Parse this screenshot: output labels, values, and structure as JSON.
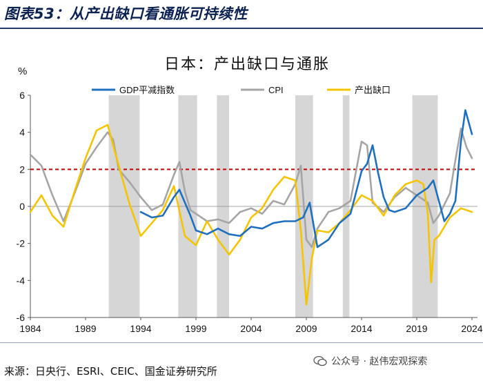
{
  "figure_title": "图表53：从产出缺口看通胀可持续性",
  "source": "来源：日央行、ESRI、CEIC、国金证券研究所",
  "watermark": "公众号 · 赵伟宏观探索",
  "colors": {
    "gdp_deflator": "#1f6fbf",
    "cpi": "#a5a5a5",
    "output_gap": "#f5c400",
    "recession": "#d6d6d6",
    "reference_line": "#c00000",
    "title": "#0b2150"
  },
  "chart_data": {
    "type": "line",
    "title": "日本：产出缺口与通胀",
    "ylabel": "%",
    "xlim": [
      1984,
      2024.5
    ],
    "ylim": [
      -6,
      6
    ],
    "x_ticks": [
      1984,
      1989,
      1994,
      1999,
      2004,
      2009,
      2014,
      2019,
      2024
    ],
    "y_ticks": [
      -6,
      -4,
      -2,
      0,
      2,
      4,
      6
    ],
    "legend_position": "top",
    "reference_line": {
      "y": 2,
      "style": "dashed"
    },
    "recession_bands": [
      [
        1991.1,
        1993.9
      ],
      [
        1997.4,
        1999.1
      ],
      [
        2000.9,
        2002.0
      ],
      [
        2008.0,
        2009.6
      ],
      [
        2012.3,
        2012.9
      ],
      [
        2018.6,
        2020.9
      ]
    ],
    "series": [
      {
        "name": "GDP平减指数",
        "x": [
          1994,
          1995,
          1996,
          1997,
          1997.5,
          1998,
          1998.5,
          1999,
          2000,
          2001,
          2002,
          2003,
          2004,
          2005,
          2006,
          2007,
          2008,
          2008.7,
          2009.3,
          2010,
          2011,
          2012,
          2013,
          2014,
          2014.5,
          2015,
          2015.5,
          2016,
          2016.5,
          2017,
          2018,
          2019,
          2020,
          2020.5,
          2021,
          2021.5,
          2022,
          2022.5,
          2023,
          2023.4,
          2024
        ],
        "values": [
          -0.3,
          -0.6,
          -0.5,
          0.5,
          0.9,
          0.2,
          -0.5,
          -1.3,
          -1.5,
          -1.2,
          -1.5,
          -1.6,
          -1.1,
          -1.2,
          -0.9,
          -0.8,
          -0.8,
          -0.6,
          0.2,
          -2.2,
          -1.8,
          -0.9,
          -0.4,
          1.9,
          2.3,
          3.3,
          1.8,
          0.5,
          -0.2,
          -0.3,
          -0.1,
          0.6,
          1.0,
          1.4,
          0.3,
          -0.8,
          -0.4,
          0.3,
          3.5,
          5.2,
          3.9
        ]
      },
      {
        "name": "CPI",
        "x": [
          1984,
          1985,
          1986,
          1987,
          1988,
          1989,
          1990,
          1991,
          1991.5,
          1992,
          1993,
          1994,
          1995,
          1996,
          1997,
          1997.5,
          1998,
          1998.5,
          1999,
          2000,
          2001,
          2002,
          2003,
          2004,
          2005,
          2006,
          2007,
          2008,
          2008.5,
          2009,
          2009.5,
          2010,
          2011,
          2012,
          2013,
          2014,
          2014.5,
          2015,
          2016,
          2017,
          2018,
          2019,
          2020,
          2020.5,
          2021,
          2022,
          2022.5,
          2023,
          2023.5,
          2024
        ],
        "values": [
          2.8,
          2.2,
          0.6,
          -0.8,
          0.7,
          2.3,
          3.2,
          4.0,
          3.6,
          2.0,
          1.3,
          0.5,
          -0.2,
          0.1,
          1.7,
          2.4,
          0.8,
          -0.2,
          -0.4,
          -0.8,
          -0.7,
          -0.9,
          -0.3,
          -0.1,
          -0.4,
          0.3,
          0.1,
          1.2,
          2.2,
          -1.8,
          -2.2,
          -1.2,
          -0.3,
          -0.1,
          0.3,
          3.5,
          3.3,
          0.2,
          -0.3,
          0.5,
          1.0,
          0.6,
          0.2,
          -0.9,
          -0.5,
          0.7,
          2.5,
          4.2,
          3.2,
          2.6
        ]
      },
      {
        "name": "产出缺口",
        "x": [
          1984,
          1985,
          1986,
          1987,
          1988,
          1989,
          1990,
          1991,
          1992,
          1993,
          1994,
          1995,
          1996,
          1997,
          1998,
          1999,
          2000,
          2001,
          2002,
          2003,
          2004,
          2005,
          2006,
          2007,
          2008,
          2008.5,
          2009,
          2009.5,
          2010,
          2011,
          2012,
          2013,
          2014,
          2015,
          2016,
          2017,
          2018,
          2019,
          2019.6,
          2020,
          2020.3,
          2020.6,
          2021,
          2022,
          2023,
          2024
        ],
        "values": [
          -0.3,
          0.6,
          -0.5,
          -1.1,
          0.8,
          2.6,
          4.1,
          4.4,
          2.2,
          0.1,
          -1.6,
          -0.9,
          -0.2,
          1.1,
          -1.6,
          -2.1,
          -0.8,
          -1.8,
          -2.6,
          -1.8,
          -0.6,
          -0.1,
          0.9,
          1.6,
          1.4,
          -1.3,
          -5.3,
          -2.8,
          -1.3,
          -1.4,
          -0.9,
          -0.2,
          0.6,
          0.3,
          -0.5,
          0.6,
          1.2,
          1.4,
          1.2,
          -0.4,
          -4.1,
          -1.8,
          -1.6,
          -0.6,
          -0.1,
          -0.3
        ]
      }
    ]
  }
}
